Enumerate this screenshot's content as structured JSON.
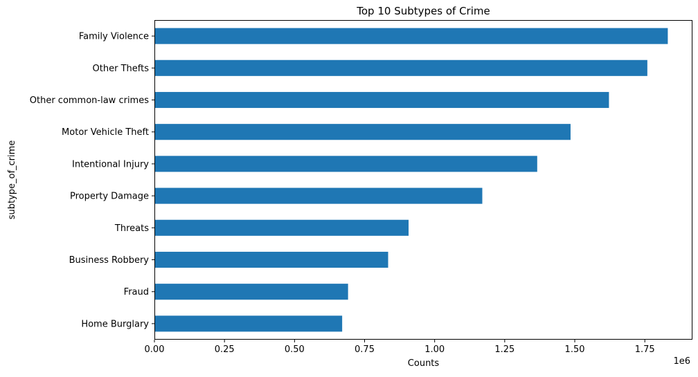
{
  "chart_data": {
    "type": "bar",
    "orientation": "horizontal",
    "title": "Top 10 Subtypes of Crime",
    "xlabel": "Counts",
    "ylabel": "subtype_of_crime",
    "x_scale_label": "1e6",
    "xlim": [
      0,
      1.92
    ],
    "x_ticks": [
      "0.00",
      "0.25",
      "0.50",
      "0.75",
      "1.00",
      "1.25",
      "1.50",
      "1.75"
    ],
    "grid": false,
    "legend": "none",
    "bar_color": "#1f77b4",
    "categories": [
      "Family Violence",
      "Other Thefts",
      "Other common-law crimes",
      "Motor Vehicle Theft",
      "Intentional Injury",
      "Property Damage",
      "Threats",
      "Business Robbery",
      "Fraud",
      "Home Burglary"
    ],
    "values": [
      1.832,
      1.759,
      1.622,
      1.485,
      1.366,
      1.17,
      0.907,
      0.834,
      0.691,
      0.67
    ],
    "value_unit_multiplier": 1000000
  }
}
